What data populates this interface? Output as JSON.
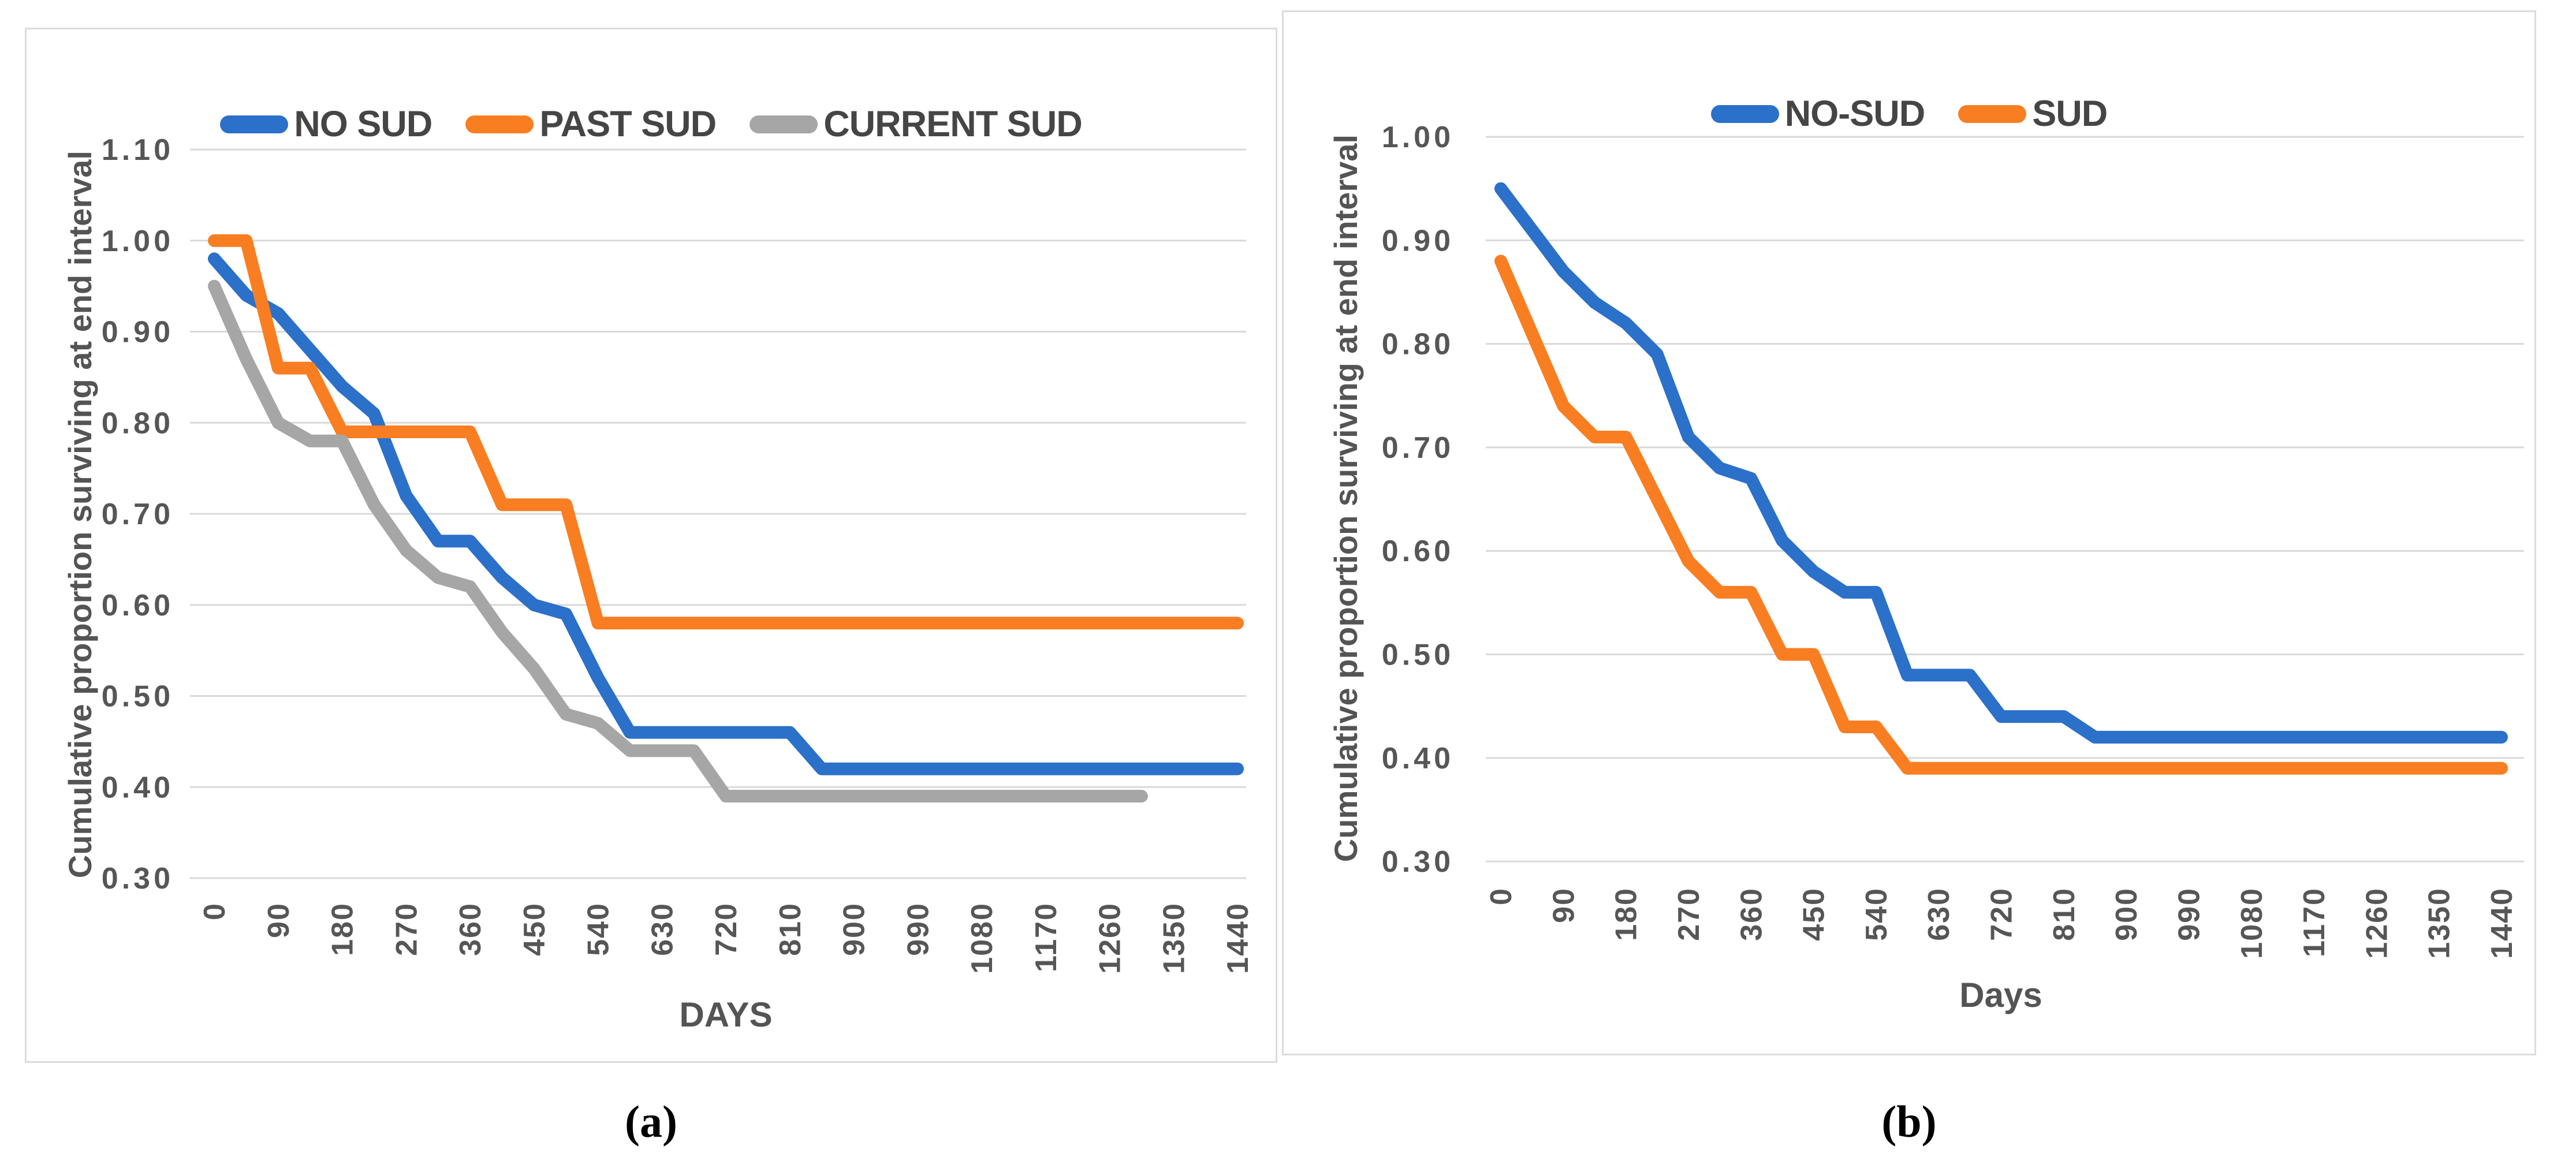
{
  "captions": {
    "a": "(a)",
    "b": "(b)"
  },
  "chart_data": [
    {
      "id": "a",
      "type": "line",
      "title": "",
      "xlabel": "DAYS",
      "ylabel": "Cumulative proportion surviving at end interval",
      "xlim": [
        0,
        1440
      ],
      "ylim": [
        0.3,
        1.1
      ],
      "grid": true,
      "legend_position": "top",
      "x_tick_labels": [
        "0",
        "90",
        "180",
        "270",
        "360",
        "450",
        "540",
        "630",
        "720",
        "810",
        "900",
        "990",
        "1080",
        "1170",
        "1260",
        "1350",
        "1440"
      ],
      "y_tick_labels": [
        "1.10",
        "1.00",
        "0.90",
        "0.80",
        "0.70",
        "0.60",
        "0.50",
        "0.40",
        "0.30"
      ],
      "x": [
        0,
        45,
        90,
        135,
        180,
        225,
        270,
        315,
        360,
        405,
        450,
        495,
        540,
        585,
        630,
        675,
        720,
        765,
        810,
        855,
        900,
        945,
        990,
        1035,
        1080,
        1125,
        1170,
        1215,
        1260,
        1305,
        1350,
        1395,
        1440
      ],
      "series": [
        {
          "name": "NO SUD",
          "color": "#2B70C9",
          "values": [
            0.98,
            0.94,
            0.92,
            0.88,
            0.84,
            0.81,
            0.72,
            0.67,
            0.67,
            0.63,
            0.6,
            0.59,
            0.52,
            0.46,
            0.46,
            0.46,
            0.46,
            0.46,
            0.46,
            0.42,
            0.42,
            0.42,
            0.42,
            0.42,
            0.42,
            0.42,
            0.42,
            0.42,
            0.42,
            0.42,
            0.42,
            0.42,
            0.42
          ]
        },
        {
          "name": "PAST SUD",
          "color": "#F97E22",
          "values": [
            1.0,
            1.0,
            0.86,
            0.86,
            0.79,
            0.79,
            0.79,
            0.79,
            0.79,
            0.71,
            0.71,
            0.71,
            0.58,
            0.58,
            0.58,
            0.58,
            0.58,
            0.58,
            0.58,
            0.58,
            0.58,
            0.58,
            0.58,
            0.58,
            0.58,
            0.58,
            0.58,
            0.58,
            0.58,
            0.58,
            0.58,
            0.58,
            0.58
          ]
        },
        {
          "name": "CURRENT SUD",
          "color": "#A6A6A6",
          "values": [
            0.95,
            0.87,
            0.8,
            0.78,
            0.78,
            0.71,
            0.66,
            0.63,
            0.62,
            0.57,
            0.53,
            0.48,
            0.47,
            0.44,
            0.44,
            0.44,
            0.39,
            0.39,
            0.39,
            0.39,
            0.39,
            0.39,
            0.39,
            0.39,
            0.39,
            0.39,
            0.39,
            0.39,
            0.39,
            0.39,
            null,
            null,
            null
          ]
        }
      ]
    },
    {
      "id": "b",
      "type": "line",
      "title": "",
      "xlabel": "Days",
      "ylabel": "Cumulative proportion surviving at end interval",
      "xlim": [
        0,
        1440
      ],
      "ylim": [
        0.3,
        1.0
      ],
      "grid": true,
      "legend_position": "top",
      "x_tick_labels": [
        "0",
        "90",
        "180",
        "270",
        "360",
        "450",
        "540",
        "630",
        "720",
        "810",
        "900",
        "990",
        "1080",
        "1170",
        "1260",
        "1350",
        "1440"
      ],
      "y_tick_labels": [
        "1.00",
        "0.90",
        "0.80",
        "0.70",
        "0.60",
        "0.50",
        "0.40",
        "0.30"
      ],
      "x": [
        0,
        45,
        90,
        135,
        180,
        225,
        270,
        315,
        360,
        405,
        450,
        495,
        540,
        585,
        630,
        675,
        720,
        765,
        810,
        855,
        900,
        945,
        990,
        1035,
        1080,
        1125,
        1170,
        1215,
        1260,
        1305,
        1350,
        1395,
        1440
      ],
      "series": [
        {
          "name": "NO-SUD",
          "color": "#2B70C9",
          "values": [
            0.95,
            0.91,
            0.87,
            0.84,
            0.82,
            0.79,
            0.71,
            0.68,
            0.67,
            0.61,
            0.58,
            0.56,
            0.56,
            0.48,
            0.48,
            0.48,
            0.44,
            0.44,
            0.44,
            0.42,
            0.42,
            0.42,
            0.42,
            0.42,
            0.42,
            0.42,
            0.42,
            0.42,
            0.42,
            0.42,
            0.42,
            0.42,
            0.42
          ]
        },
        {
          "name": "SUD",
          "color": "#F97E22",
          "values": [
            0.88,
            0.81,
            0.74,
            0.71,
            0.71,
            0.65,
            0.59,
            0.56,
            0.56,
            0.5,
            0.5,
            0.43,
            0.43,
            0.39,
            0.39,
            0.39,
            0.39,
            0.39,
            0.39,
            0.39,
            0.39,
            0.39,
            0.39,
            0.39,
            0.39,
            0.39,
            0.39,
            0.39,
            0.39,
            0.39,
            0.39,
            0.39,
            0.39
          ]
        }
      ]
    }
  ],
  "style": {
    "grid_color": "#d9d9d9",
    "tick_color": "#565656"
  }
}
